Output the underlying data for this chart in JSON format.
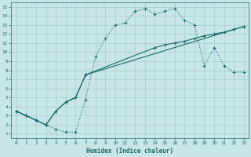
{
  "xlabel": "Humidex (Indice chaleur)",
  "bg_color": "#c8e6e6",
  "grid_color": "#a8cccc",
  "line_color": "#1a6b6b",
  "xlim": [
    -0.5,
    23.5
  ],
  "ylim": [
    0.5,
    15.5
  ],
  "xticks": [
    0,
    1,
    2,
    3,
    4,
    5,
    6,
    7,
    8,
    9,
    10,
    11,
    12,
    13,
    14,
    15,
    16,
    17,
    18,
    19,
    20,
    21,
    22,
    23
  ],
  "yticks": [
    1,
    2,
    3,
    4,
    5,
    6,
    7,
    8,
    9,
    10,
    11,
    12,
    13,
    14,
    15
  ],
  "curve1_x": [
    0,
    1,
    2,
    3,
    4,
    5,
    6,
    7,
    8,
    9,
    10,
    11,
    12,
    13,
    14,
    15,
    16,
    17,
    18,
    19,
    20,
    21,
    22,
    23
  ],
  "curve1_y": [
    3.5,
    3.0,
    2.5,
    2.0,
    1.5,
    1.2,
    1.2,
    4.8,
    9.5,
    11.5,
    13.0,
    13.2,
    14.5,
    14.8,
    14.2,
    14.5,
    14.8,
    13.5,
    13.0,
    8.5,
    10.5,
    8.5,
    7.8,
    7.8
  ],
  "curve2_x": [
    0,
    1,
    2,
    3,
    4,
    5,
    6,
    7,
    14,
    15,
    16,
    17,
    18,
    19,
    20,
    21,
    22,
    23
  ],
  "curve2_y": [
    3.5,
    3.0,
    2.5,
    2.0,
    3.5,
    4.5,
    5.0,
    7.5,
    10.5,
    10.8,
    11.0,
    11.2,
    11.5,
    11.8,
    12.0,
    12.2,
    12.5,
    12.8
  ],
  "curve3_x": [
    0,
    1,
    2,
    3,
    4,
    5,
    6,
    7,
    22,
    23
  ],
  "curve3_y": [
    3.5,
    3.0,
    2.5,
    2.0,
    3.5,
    4.5,
    5.0,
    7.5,
    12.5,
    12.8
  ]
}
